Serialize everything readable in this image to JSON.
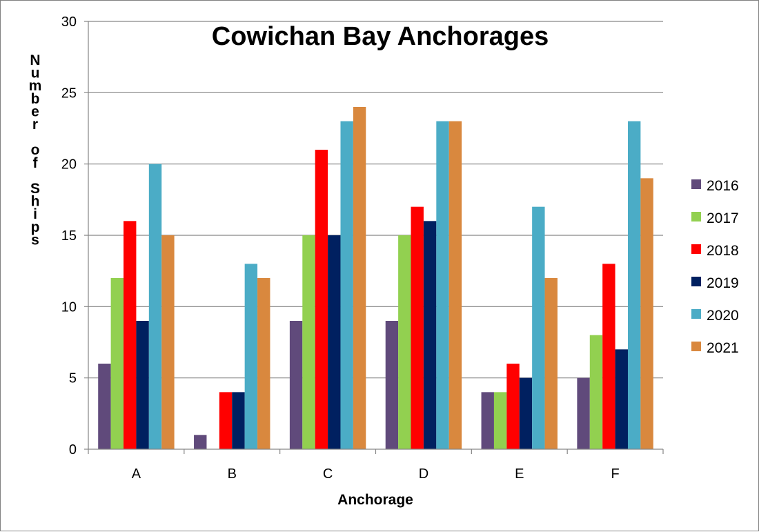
{
  "chart_data": {
    "type": "bar",
    "title": "Cowichan Bay Anchorages",
    "xlabel": "Anchorage",
    "ylabel": "Number of Ships",
    "ylim": [
      0,
      30
    ],
    "yticks": [
      0,
      5,
      10,
      15,
      20,
      25,
      30
    ],
    "grid": true,
    "legend_position": "right",
    "categories": [
      "A",
      "B",
      "C",
      "D",
      "E",
      "F"
    ],
    "series": [
      {
        "name": "2016",
        "color": "#604A7B",
        "values": [
          6,
          1,
          9,
          9,
          4,
          5
        ]
      },
      {
        "name": "2017",
        "color": "#92D050",
        "values": [
          12,
          0,
          15,
          15,
          4,
          8
        ]
      },
      {
        "name": "2018",
        "color": "#FF0000",
        "values": [
          16,
          4,
          21,
          17,
          6,
          13
        ]
      },
      {
        "name": "2019",
        "color": "#002060",
        "values": [
          9,
          4,
          15,
          16,
          5,
          7
        ]
      },
      {
        "name": "2020",
        "color": "#4BACC6",
        "values": [
          20,
          13,
          23,
          23,
          17,
          23
        ]
      },
      {
        "name": "2021",
        "color": "#D9883E",
        "values": [
          15,
          12,
          24,
          23,
          12,
          19
        ]
      }
    ]
  }
}
